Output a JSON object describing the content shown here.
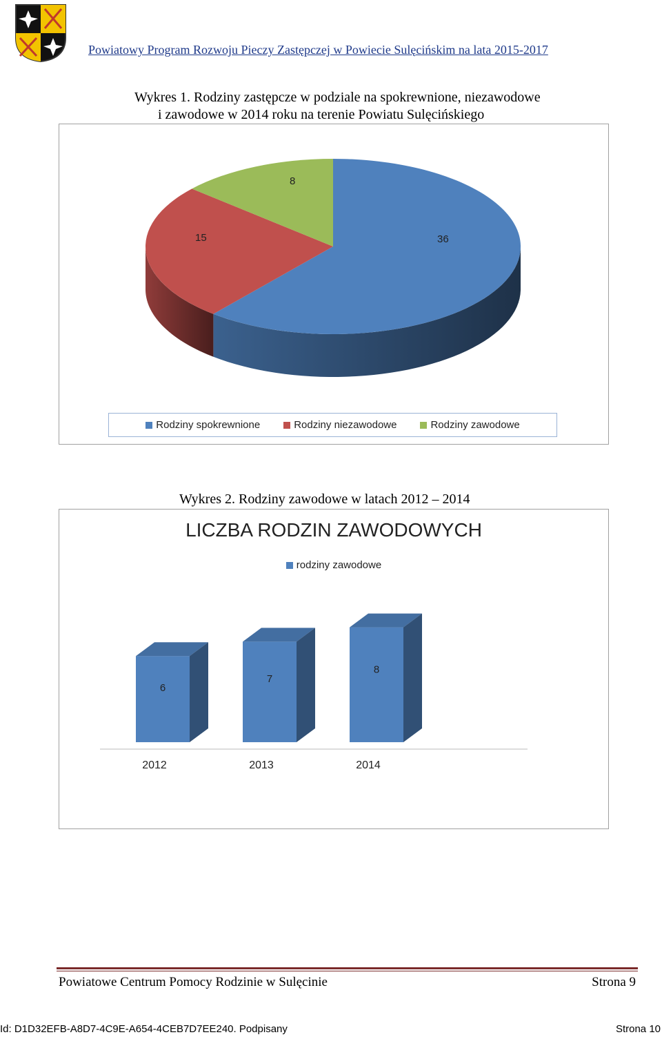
{
  "header": {
    "logo_icon": "coat-of-arms-icon",
    "title": "Powiatowy Program Rozwoju Pieczy Zastępczej w Powiecie Sulęcińskim na lata 2015-2017"
  },
  "chart1": {
    "caption_line1": "Wykres 1. Rodziny zastępcze w podziale na spokrewnione, niezawodowe",
    "caption_line2": "i zawodowe w 2014 roku na terenie Powiatu Sulęcińskiego"
  },
  "chart2": {
    "caption": "Wykres 2. Rodziny zawodowe w latach 2012 – 2014"
  },
  "chart_data": [
    {
      "type": "pie",
      "labels": [
        "Rodziny spokrewnione",
        "Rodziny niezawodowe",
        "Rodziny zawodowe"
      ],
      "values": [
        36,
        15,
        8
      ],
      "colors": [
        "#4f81bd",
        "#c0504d",
        "#9bbb59"
      ],
      "legend_position": "bottom"
    },
    {
      "type": "bar",
      "title": "LICZBA RODZIN ZAWODOWYCH",
      "categories": [
        "2012",
        "2013",
        "2014"
      ],
      "series": [
        {
          "name": "rodziny zawodowe",
          "values": [
            6,
            7,
            8
          ]
        }
      ],
      "color": "#4f81bd",
      "legend_position": "top"
    }
  ],
  "footer": {
    "org": "Powiatowe Centrum Pomocy Rodzinie w Sulęcinie",
    "page": "Strona 9"
  },
  "bottom": {
    "id_text": "Id: D1D32EFB-A8D7-4C9E-A654-4CEB7D7EE240. Podpisany",
    "page_text": "Strona 10"
  }
}
